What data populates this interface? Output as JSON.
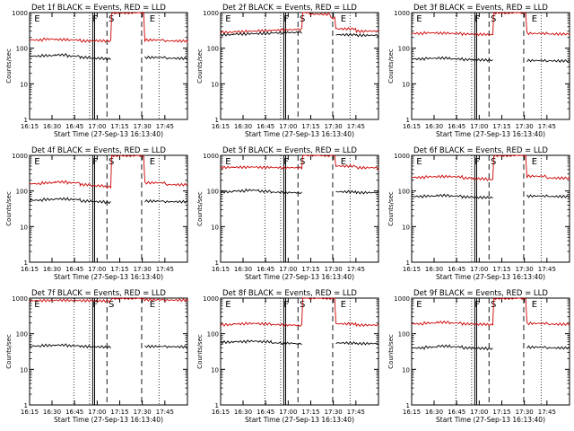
{
  "chart_data": [
    {
      "type": "line",
      "title": "Det 1f BLACK = Events, RED = LLD",
      "xlabel": "Start Time (27-Sep-13 16:13:40)",
      "ylabel": "Counts/sec",
      "xtick_labels": [
        "16:15",
        "16:30",
        "16:45",
        "17:00",
        "17:15",
        "17:30",
        "17:45"
      ],
      "ytick_labels": [
        "1",
        "10",
        "100",
        "1000"
      ],
      "y_scale": "log",
      "ylim": [
        1,
        1000
      ],
      "markers": [
        "E",
        "F",
        "S",
        "E"
      ],
      "series": [
        {
          "color": "#cc0000",
          "values": [
            170,
            180,
            175,
            170,
            160,
            162,
            160,
            1000,
            1000,
            1000,
            170,
            160,
            150
          ]
        },
        {
          "color": "#000000",
          "values": [
            60,
            62,
            65,
            60,
            55,
            52,
            50,
            null,
            null,
            null,
            55,
            52,
            50
          ]
        }
      ]
    },
    {
      "type": "line",
      "title": "Det 2f BLACK = Events, RED = LLD",
      "xlabel": "Start Time (27-Sep-13 16:13:40)",
      "ylabel": "Counts/sec",
      "xtick_labels": [
        "16:15",
        "16:30",
        "16:45",
        "17:00",
        "17:15",
        "17:30",
        "17:45"
      ],
      "ytick_labels": [
        "1",
        "10",
        "100",
        "1000"
      ],
      "y_scale": "log",
      "ylim": [
        1,
        1000
      ],
      "markers": [
        "E",
        "F",
        "S",
        "E"
      ],
      "series": [
        {
          "color": "#cc0000",
          "values": [
            280,
            290,
            300,
            310,
            320,
            330,
            340,
            1000,
            900,
            700,
            350,
            300,
            280
          ]
        },
        {
          "color": "#000000",
          "values": [
            240,
            250,
            255,
            260,
            270,
            275,
            280,
            null,
            null,
            null,
            240,
            230,
            220
          ]
        }
      ]
    },
    {
      "type": "line",
      "title": "Det 3f BLACK = Events, RED = LLD",
      "xlabel": "Start Time (27-Sep-13 16:13:40)",
      "ylabel": "Counts/sec",
      "xtick_labels": [
        "16:15",
        "16:30",
        "16:45",
        "17:00",
        "17:15",
        "17:30",
        "17:45"
      ],
      "ytick_labels": [
        "1",
        "10",
        "100",
        "1000"
      ],
      "y_scale": "log",
      "ylim": [
        1,
        1000
      ],
      "markers": [
        "E",
        "F",
        "S",
        "E"
      ],
      "series": [
        {
          "color": "#cc0000",
          "values": [
            260,
            270,
            265,
            260,
            250,
            245,
            240,
            1000,
            1000,
            1000,
            260,
            250,
            240
          ]
        },
        {
          "color": "#000000",
          "values": [
            50,
            52,
            53,
            50,
            48,
            47,
            46,
            null,
            null,
            null,
            45,
            44,
            43
          ]
        }
      ]
    },
    {
      "type": "line",
      "title": "Det 4f BLACK = Events, RED = LLD",
      "xlabel": "Start Time (27-Sep-13 16:13:40)",
      "ylabel": "Counts/sec",
      "xtick_labels": [
        "16:15",
        "16:30",
        "16:45",
        "17:00",
        "17:15",
        "17:30",
        "17:45"
      ],
      "ytick_labels": [
        "1",
        "10",
        "100",
        "1000"
      ],
      "y_scale": "log",
      "ylim": [
        1,
        1000
      ],
      "markers": [
        "E",
        "F",
        "S",
        "E"
      ],
      "series": [
        {
          "color": "#cc0000",
          "values": [
            160,
            170,
            180,
            170,
            150,
            140,
            130,
            1000,
            1000,
            1000,
            170,
            150,
            140
          ]
        },
        {
          "color": "#000000",
          "values": [
            55,
            58,
            60,
            58,
            52,
            50,
            48,
            null,
            null,
            null,
            52,
            50,
            48
          ]
        }
      ]
    },
    {
      "type": "line",
      "title": "Det 5f BLACK = Events, RED = LLD",
      "xlabel": "Start Time (27-Sep-13 16:13:40)",
      "ylabel": "Counts/sec",
      "xtick_labels": [
        "16:15",
        "16:30",
        "16:45",
        "17:00",
        "17:15",
        "17:30",
        "17:45"
      ],
      "ytick_labels": [
        "1",
        "10",
        "100",
        "1000"
      ],
      "y_scale": "log",
      "ylim": [
        1,
        1000
      ],
      "markers": [
        "E",
        "F",
        "S",
        "E"
      ],
      "series": [
        {
          "color": "#cc0000",
          "values": [
            460,
            465,
            470,
            460,
            455,
            450,
            450,
            1000,
            1000,
            1000,
            500,
            450,
            420
          ]
        },
        {
          "color": "#000000",
          "values": [
            95,
            100,
            105,
            98,
            92,
            90,
            88,
            null,
            null,
            null,
            95,
            90,
            88
          ]
        }
      ]
    },
    {
      "type": "line",
      "title": "Det 6f BLACK = Events, RED = LLD",
      "xlabel": "Start Time (27-Sep-13 16:13:40)",
      "ylabel": "Counts/sec",
      "xtick_labels": [
        "16:15",
        "16:30",
        "16:45",
        "17:00",
        "17:15",
        "17:30",
        "17:45"
      ],
      "ytick_labels": [
        "1",
        "10",
        "100",
        "1000"
      ],
      "y_scale": "log",
      "ylim": [
        1,
        1000
      ],
      "markers": [
        "E",
        "F",
        "S",
        "E"
      ],
      "series": [
        {
          "color": "#cc0000",
          "values": [
            240,
            250,
            255,
            250,
            230,
            220,
            210,
            1000,
            1000,
            1000,
            260,
            230,
            210
          ]
        },
        {
          "color": "#000000",
          "values": [
            70,
            72,
            75,
            72,
            68,
            66,
            65,
            null,
            null,
            null,
            72,
            70,
            68
          ]
        }
      ]
    },
    {
      "type": "line",
      "title": "Det 7f BLACK = Events, RED = LLD",
      "xlabel": "Start Time (27-Sep-13 16:13:40)",
      "ylabel": "Counts/sec",
      "xtick_labels": [
        "16:15",
        "16:30",
        "16:45",
        "17:00",
        "17:15",
        "17:30",
        "17:45"
      ],
      "ytick_labels": [
        "1",
        "10",
        "100",
        "1000"
      ],
      "y_scale": "log",
      "ylim": [
        1,
        1000
      ],
      "markers": [
        "E",
        "F",
        "S",
        "E"
      ],
      "series": [
        {
          "color": "#cc0000",
          "values": [
            850,
            860,
            870,
            860,
            850,
            840,
            830,
            1000,
            1000,
            1000,
            900,
            880,
            870
          ]
        },
        {
          "color": "#000000",
          "values": [
            45,
            47,
            48,
            46,
            44,
            43,
            42,
            null,
            null,
            null,
            44,
            43,
            42
          ]
        }
      ]
    },
    {
      "type": "line",
      "title": "Det 8f BLACK = Events, RED = LLD",
      "xlabel": "Start Time (27-Sep-13 16:13:40)",
      "ylabel": "Counts/sec",
      "xtick_labels": [
        "16:15",
        "16:30",
        "16:45",
        "17:00",
        "17:15",
        "17:30",
        "17:45"
      ],
      "ytick_labels": [
        "1",
        "10",
        "100",
        "1000"
      ],
      "y_scale": "log",
      "ylim": [
        1,
        1000
      ],
      "markers": [
        "E",
        "F",
        "S",
        "E"
      ],
      "series": [
        {
          "color": "#cc0000",
          "values": [
            180,
            190,
            195,
            190,
            180,
            175,
            170,
            1000,
            1000,
            1000,
            190,
            175,
            165
          ]
        },
        {
          "color": "#000000",
          "values": [
            58,
            60,
            62,
            60,
            55,
            54,
            52,
            null,
            null,
            null,
            55,
            53,
            52
          ]
        }
      ]
    },
    {
      "type": "line",
      "title": "Det 9f BLACK = Events, RED = LLD",
      "xlabel": "Start Time (27-Sep-13 16:13:40)",
      "ylabel": "Counts/sec",
      "xtick_labels": [
        "16:15",
        "16:30",
        "16:45",
        "17:00",
        "17:15",
        "17:30",
        "17:45"
      ],
      "ytick_labels": [
        "1",
        "10",
        "100",
        "1000"
      ],
      "y_scale": "log",
      "ylim": [
        1,
        1000
      ],
      "markers": [
        "E",
        "F",
        "S",
        "E"
      ],
      "series": [
        {
          "color": "#cc0000",
          "values": [
            190,
            200,
            210,
            200,
            190,
            185,
            180,
            1000,
            1000,
            1000,
            195,
            185,
            180
          ]
        },
        {
          "color": "#000000",
          "values": [
            40,
            42,
            45,
            43,
            40,
            39,
            38,
            null,
            null,
            null,
            42,
            40,
            38
          ]
        }
      ]
    }
  ]
}
